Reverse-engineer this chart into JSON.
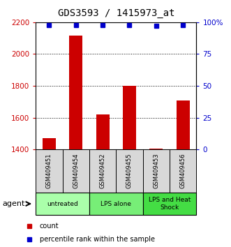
{
  "title": "GDS3593 / 1415973_at",
  "samples": [
    "GSM409451",
    "GSM409454",
    "GSM409452",
    "GSM409455",
    "GSM409453",
    "GSM409456"
  ],
  "bar_values": [
    1470,
    2115,
    1620,
    1800,
    1405,
    1710
  ],
  "percentile_values": [
    98,
    98,
    98,
    98,
    97,
    98
  ],
  "ylim_left": [
    1400,
    2200
  ],
  "ylim_right": [
    0,
    100
  ],
  "yticks_left": [
    1400,
    1600,
    1800,
    2000,
    2200
  ],
  "yticks_right": [
    0,
    25,
    50,
    75,
    100
  ],
  "ytick_labels_right": [
    "0",
    "25",
    "50",
    "75",
    "100%"
  ],
  "bar_color": "#cc0000",
  "dot_color": "#0000cc",
  "groups": [
    {
      "label": "untreated",
      "start": 0,
      "end": 2,
      "color": "#aaffaa"
    },
    {
      "label": "LPS alone",
      "start": 2,
      "end": 4,
      "color": "#77ee77"
    },
    {
      "label": "LPS and Heat\nShock",
      "start": 4,
      "end": 6,
      "color": "#44dd44"
    }
  ],
  "group_label_text": "agent",
  "legend_count_label": "count",
  "legend_percentile_label": "percentile rank within the sample",
  "background_color": "#ffffff",
  "sample_area_color": "#d8d8d8",
  "title_fontsize": 10,
  "tick_fontsize": 7.5,
  "bar_width": 0.5
}
